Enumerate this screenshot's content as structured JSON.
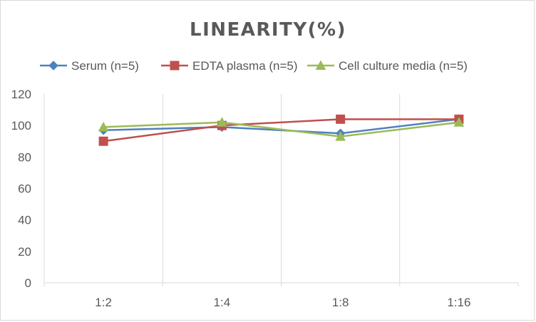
{
  "chart_data": {
    "type": "line",
    "title": "LINEARITY(%)",
    "xlabel": "",
    "ylabel": "",
    "categories": [
      "1:2",
      "1:4",
      "1:8",
      "1:16"
    ],
    "ylim": [
      0,
      120
    ],
    "yticks": [
      0,
      20,
      40,
      60,
      80,
      100,
      120
    ],
    "grid": "vertical",
    "legend_position": "top",
    "series": [
      {
        "name": "Serum (n=5)",
        "values": [
          97,
          99,
          95,
          104
        ],
        "color": "#4f81bd",
        "marker": "diamond"
      },
      {
        "name": "EDTA plasma (n=5)",
        "values": [
          90,
          100,
          104,
          104
        ],
        "color": "#c0504d",
        "marker": "square"
      },
      {
        "name": "Cell culture media (n=5)",
        "values": [
          99,
          102,
          93,
          102
        ],
        "color": "#9bbb59",
        "marker": "triangle"
      }
    ]
  }
}
